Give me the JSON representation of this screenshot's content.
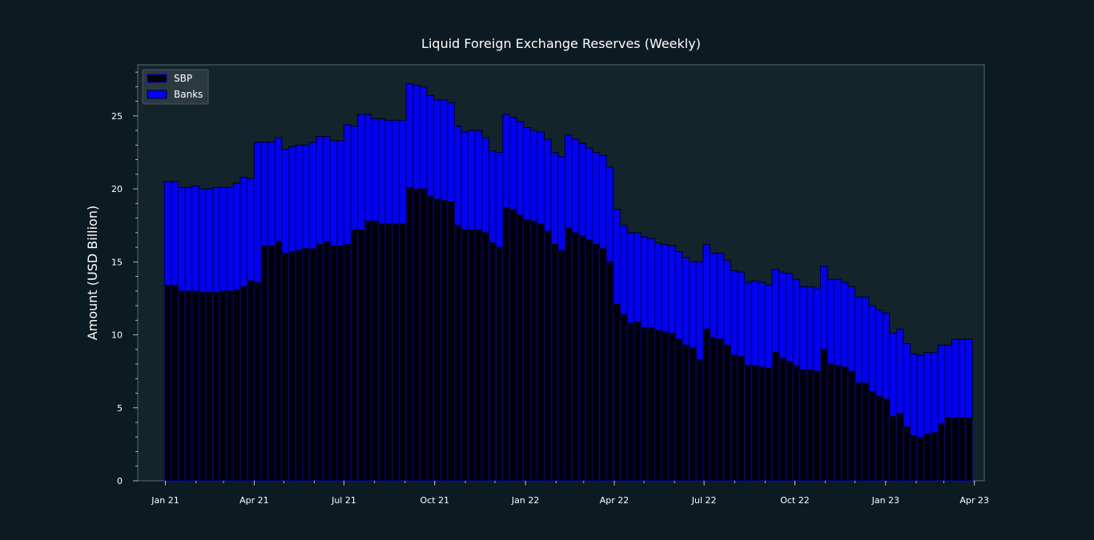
{
  "colors": {
    "background": "#0c1b21",
    "plot_background": "#13242a",
    "text": "#ffffff",
    "axis": "#5a6b70",
    "sbp_fill": "#000000",
    "sbp_edge": "#0000cc",
    "banks_fill": "#0000ff",
    "banks_edge": "#000000"
  },
  "chart_data": {
    "type": "bar",
    "stacked": true,
    "title": "Liquid Foreign Exchange Reserves (Weekly)",
    "xlabel": "",
    "ylabel": "Amount (USD Billion)",
    "x_ticks": [
      "2021-01-01",
      "2021-04-01",
      "2021-07-01",
      "2021-10-01",
      "2022-01-01",
      "2022-04-01",
      "2022-07-01",
      "2022-10-01",
      "2023-01-01",
      "2023-04-01"
    ],
    "x_tick_labels": [
      "Jan 21",
      "Apr 21",
      "Jul 21",
      "Oct 21",
      "Jan 22",
      "Apr 22",
      "Jul 22",
      "Oct 22",
      "Jan 23",
      "Apr 23"
    ],
    "xlim": [
      "2020-12-04",
      "2023-04-11"
    ],
    "ylim": [
      0,
      28.5
    ],
    "y_ticks": [
      0,
      5,
      10,
      15,
      20,
      25
    ],
    "legend_position": "top-left",
    "dates": [
      "2020-12-31",
      "2021-01-07",
      "2021-01-14",
      "2021-01-21",
      "2021-01-28",
      "2021-02-04",
      "2021-02-11",
      "2021-02-18",
      "2021-02-25",
      "2021-03-04",
      "2021-03-11",
      "2021-03-18",
      "2021-03-25",
      "2021-04-01",
      "2021-04-08",
      "2021-04-15",
      "2021-04-22",
      "2021-04-29",
      "2021-05-06",
      "2021-05-13",
      "2021-05-20",
      "2021-05-27",
      "2021-06-03",
      "2021-06-10",
      "2021-06-17",
      "2021-06-24",
      "2021-07-01",
      "2021-07-08",
      "2021-07-15",
      "2021-07-22",
      "2021-07-29",
      "2021-08-05",
      "2021-08-12",
      "2021-08-19",
      "2021-08-26",
      "2021-09-02",
      "2021-09-09",
      "2021-09-16",
      "2021-09-23",
      "2021-09-30",
      "2021-10-07",
      "2021-10-14",
      "2021-10-21",
      "2021-10-28",
      "2021-11-04",
      "2021-11-11",
      "2021-11-18",
      "2021-11-25",
      "2021-12-02",
      "2021-12-09",
      "2021-12-16",
      "2021-12-23",
      "2021-12-30",
      "2022-01-06",
      "2022-01-13",
      "2022-01-20",
      "2022-01-27",
      "2022-02-03",
      "2022-02-10",
      "2022-02-17",
      "2022-02-24",
      "2022-03-03",
      "2022-03-10",
      "2022-03-17",
      "2022-03-24",
      "2022-03-31",
      "2022-04-07",
      "2022-04-14",
      "2022-04-21",
      "2022-04-28",
      "2022-05-05",
      "2022-05-12",
      "2022-05-19",
      "2022-05-26",
      "2022-06-02",
      "2022-06-09",
      "2022-06-16",
      "2022-06-23",
      "2022-06-30",
      "2022-07-07",
      "2022-07-14",
      "2022-07-21",
      "2022-07-28",
      "2022-08-04",
      "2022-08-11",
      "2022-08-18",
      "2022-08-25",
      "2022-09-01",
      "2022-09-08",
      "2022-09-15",
      "2022-09-22",
      "2022-09-29",
      "2022-10-06",
      "2022-10-13",
      "2022-10-20",
      "2022-10-27",
      "2022-11-03",
      "2022-11-10",
      "2022-11-17",
      "2022-11-24",
      "2022-12-01",
      "2022-12-08",
      "2022-12-15",
      "2022-12-22",
      "2022-12-29",
      "2023-01-05",
      "2023-01-12",
      "2023-01-19",
      "2023-01-26",
      "2023-02-02",
      "2023-02-09",
      "2023-02-16",
      "2023-02-23",
      "2023-03-02",
      "2023-03-09",
      "2023-03-16",
      "2023-03-23"
    ],
    "series": [
      {
        "name": "SBP",
        "values": [
          13.4,
          13.4,
          13.0,
          13.0,
          13.0,
          12.9,
          12.9,
          12.9,
          13.0,
          13.0,
          13.1,
          13.3,
          13.7,
          13.6,
          16.1,
          16.1,
          16.4,
          15.6,
          15.7,
          15.8,
          15.9,
          15.9,
          16.2,
          16.4,
          16.1,
          16.1,
          16.2,
          17.2,
          17.2,
          17.8,
          17.8,
          17.6,
          17.6,
          17.6,
          17.6,
          20.1,
          20.0,
          20.0,
          19.5,
          19.3,
          19.2,
          19.1,
          17.5,
          17.2,
          17.2,
          17.2,
          17.0,
          16.3,
          16.0,
          18.7,
          18.6,
          18.2,
          17.9,
          17.8,
          17.6,
          17.1,
          16.2,
          15.8,
          17.3,
          17.0,
          16.8,
          16.5,
          16.2,
          15.9,
          15.0,
          12.1,
          11.4,
          10.8,
          10.9,
          10.5,
          10.5,
          10.3,
          10.2,
          10.1,
          9.7,
          9.3,
          9.1,
          8.3,
          10.4,
          9.8,
          9.7,
          9.3,
          8.6,
          8.5,
          7.9,
          7.9,
          7.8,
          7.7,
          8.8,
          8.4,
          8.2,
          7.9,
          7.6,
          7.6,
          7.5,
          9.0,
          8.0,
          7.9,
          7.8,
          7.5,
          6.7,
          6.7,
          6.1,
          5.8,
          5.6,
          4.4,
          4.6,
          3.7,
          3.1,
          3.0,
          3.2,
          3.3,
          3.9,
          4.3,
          4.3,
          4.3,
          4.3
        ],
        "color": "#000000"
      },
      {
        "name": "Banks",
        "values": [
          7.1,
          7.1,
          7.1,
          7.1,
          7.2,
          7.1,
          7.1,
          7.2,
          7.1,
          7.1,
          7.3,
          7.5,
          7.0,
          9.6,
          7.1,
          7.1,
          7.1,
          7.1,
          7.2,
          7.2,
          7.1,
          7.3,
          7.4,
          7.2,
          7.2,
          7.2,
          8.2,
          7.1,
          7.9,
          7.3,
          7.0,
          7.2,
          7.1,
          7.1,
          7.1,
          7.1,
          7.1,
          7.0,
          6.9,
          6.8,
          6.9,
          6.8,
          6.8,
          6.7,
          6.8,
          6.8,
          6.5,
          6.3,
          6.5,
          6.4,
          6.3,
          6.4,
          6.3,
          6.2,
          6.3,
          6.3,
          6.3,
          6.4,
          6.4,
          6.4,
          6.3,
          6.3,
          6.3,
          6.4,
          6.5,
          6.5,
          6.1,
          6.2,
          6.1,
          6.2,
          6.1,
          6.0,
          6.0,
          6.0,
          6.0,
          6.0,
          5.9,
          6.7,
          5.8,
          5.8,
          5.9,
          5.8,
          5.8,
          5.8,
          5.7,
          5.8,
          5.8,
          5.7,
          5.7,
          5.9,
          6.0,
          5.9,
          5.7,
          5.7,
          5.7,
          5.7,
          5.8,
          5.9,
          5.8,
          5.8,
          5.9,
          5.9,
          5.9,
          5.9,
          5.9,
          5.7,
          5.8,
          5.7,
          5.6,
          5.6,
          5.6,
          5.5,
          5.4,
          5.0,
          5.4,
          5.4,
          5.4
        ],
        "color": "#0000ff"
      }
    ]
  }
}
